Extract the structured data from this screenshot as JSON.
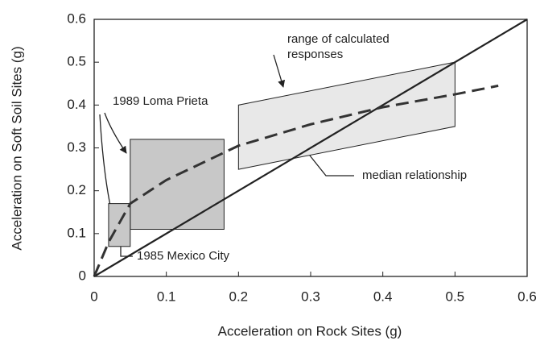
{
  "chart_data": {
    "type": "line",
    "xlabel": "Acceleration on Rock Sites (g)",
    "ylabel": "Acceleration on Soft Soil Sites (g)",
    "xlim": [
      0,
      0.6
    ],
    "ylim": [
      0,
      0.6
    ],
    "xticks": [
      0,
      0.1,
      0.2,
      0.3,
      0.4,
      0.5,
      0.6
    ],
    "yticks": [
      0,
      0.1,
      0.2,
      0.3,
      0.4,
      0.5,
      0.6
    ],
    "series": [
      {
        "color": "#222222",
        "style": "solid",
        "x": [
          0,
          0.6
        ],
        "values": [
          0,
          0.6
        ]
      },
      {
        "color": "#333333",
        "style": "dashed",
        "x": [
          0,
          0.02,
          0.05,
          0.1,
          0.15,
          0.2,
          0.3,
          0.4,
          0.5,
          0.56
        ],
        "values": [
          0,
          0.08,
          0.17,
          0.225,
          0.265,
          0.305,
          0.355,
          0.395,
          0.425,
          0.445
        ]
      }
    ],
    "polygon": {
      "color": "#e8e8e8",
      "x": [
        0.2,
        0.2,
        0.5,
        0.5
      ],
      "y": [
        0.25,
        0.4,
        0.5,
        0.35
      ]
    },
    "boxes": [
      {
        "color": "#c8c8c8",
        "x0": 0.05,
        "x1": 0.18,
        "y0": 0.11,
        "y1": 0.32
      },
      {
        "color": "#c8c8c8",
        "x0": 0.02,
        "x1": 0.05,
        "y0": 0.07,
        "y1": 0.17
      }
    ],
    "annotations": [
      {
        "lines": [
          "range of calculated",
          "responses"
        ]
      },
      {
        "lines": [
          "1989 Loma Prieta"
        ]
      },
      {
        "lines": [
          "median relationship"
        ]
      },
      {
        "lines": [
          "1985 Mexico City"
        ]
      }
    ]
  }
}
